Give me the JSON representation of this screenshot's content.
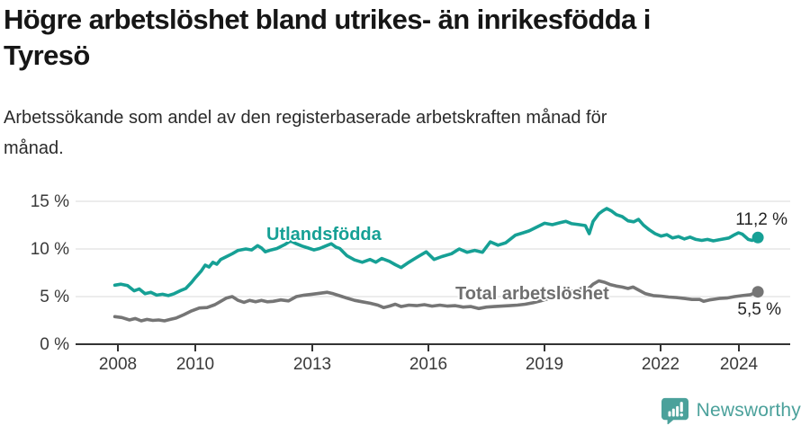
{
  "header": {
    "title_lines": [
      "Högre arbetslöshet bland utrikes- än inrikesfödda i",
      "Tyresö"
    ],
    "subtitle_lines": [
      "Arbetssökande som andel av den registerbaserade arbetskraften månad för",
      "månad."
    ]
  },
  "footer": {
    "brand": "Newsworthy",
    "brand_color": "#4ba19b",
    "logo_icon": "newsworthy-speech-bubble-bar-chart-icon"
  },
  "chart_data": {
    "type": "line",
    "unit": "%",
    "grid": true,
    "x_axis": {
      "ticks": [
        2008,
        2010,
        2013,
        2016,
        2019,
        2022,
        2024
      ],
      "tick_labels": [
        "2008",
        "2010",
        "2013",
        "2016",
        "2019",
        "2022",
        "2024"
      ],
      "range": [
        2007.8,
        2025.3
      ]
    },
    "y_axis": {
      "ticks": [
        0,
        5,
        10,
        15
      ],
      "tick_labels": [
        "0 %",
        "5 %",
        "10 %",
        "15 %"
      ],
      "range": [
        0,
        15.8
      ]
    },
    "series": [
      {
        "name": "Utlandsfödda",
        "color": "#16a095",
        "end_value": 11.2,
        "end_label": "11,2 %",
        "points": [
          [
            2007.92,
            6.2
          ],
          [
            2008.08,
            6.3
          ],
          [
            2008.25,
            6.15
          ],
          [
            2008.42,
            5.6
          ],
          [
            2008.55,
            5.8
          ],
          [
            2008.7,
            5.3
          ],
          [
            2008.85,
            5.45
          ],
          [
            2009.0,
            5.15
          ],
          [
            2009.15,
            5.25
          ],
          [
            2009.3,
            5.1
          ],
          [
            2009.45,
            5.3
          ],
          [
            2009.6,
            5.6
          ],
          [
            2009.75,
            5.85
          ],
          [
            2009.9,
            6.5
          ],
          [
            2010.0,
            7.0
          ],
          [
            2010.15,
            7.7
          ],
          [
            2010.25,
            8.3
          ],
          [
            2010.35,
            8.1
          ],
          [
            2010.45,
            8.6
          ],
          [
            2010.55,
            8.4
          ],
          [
            2010.65,
            8.9
          ],
          [
            2010.8,
            9.2
          ],
          [
            2010.95,
            9.5
          ],
          [
            2011.1,
            9.85
          ],
          [
            2011.3,
            10.0
          ],
          [
            2011.45,
            9.9
          ],
          [
            2011.6,
            10.35
          ],
          [
            2011.7,
            10.1
          ],
          [
            2011.8,
            9.7
          ],
          [
            2011.95,
            9.9
          ],
          [
            2012.1,
            10.05
          ],
          [
            2012.3,
            10.45
          ],
          [
            2012.45,
            10.85
          ],
          [
            2012.6,
            10.55
          ],
          [
            2012.75,
            10.3
          ],
          [
            2012.9,
            10.1
          ],
          [
            2013.05,
            9.9
          ],
          [
            2013.2,
            10.05
          ],
          [
            2013.35,
            10.3
          ],
          [
            2013.5,
            10.55
          ],
          [
            2013.62,
            10.2
          ],
          [
            2013.72,
            10.05
          ],
          [
            2013.9,
            9.3
          ],
          [
            2014.1,
            8.85
          ],
          [
            2014.3,
            8.6
          ],
          [
            2014.5,
            8.9
          ],
          [
            2014.65,
            8.6
          ],
          [
            2014.8,
            9.0
          ],
          [
            2015.0,
            8.7
          ],
          [
            2015.15,
            8.35
          ],
          [
            2015.3,
            8.05
          ],
          [
            2015.5,
            8.6
          ],
          [
            2015.7,
            9.1
          ],
          [
            2015.95,
            9.7
          ],
          [
            2016.15,
            8.9
          ],
          [
            2016.35,
            9.2
          ],
          [
            2016.6,
            9.5
          ],
          [
            2016.8,
            10.0
          ],
          [
            2017.0,
            9.65
          ],
          [
            2017.2,
            9.85
          ],
          [
            2017.4,
            9.65
          ],
          [
            2017.6,
            10.75
          ],
          [
            2017.8,
            10.4
          ],
          [
            2018.0,
            10.65
          ],
          [
            2018.25,
            11.45
          ],
          [
            2018.45,
            11.7
          ],
          [
            2018.6,
            11.9
          ],
          [
            2018.8,
            12.3
          ],
          [
            2019.0,
            12.7
          ],
          [
            2019.2,
            12.55
          ],
          [
            2019.4,
            12.75
          ],
          [
            2019.55,
            12.9
          ],
          [
            2019.7,
            12.65
          ],
          [
            2019.9,
            12.55
          ],
          [
            2020.05,
            12.45
          ],
          [
            2020.15,
            11.6
          ],
          [
            2020.25,
            12.9
          ],
          [
            2020.4,
            13.7
          ],
          [
            2020.5,
            14.0
          ],
          [
            2020.6,
            14.25
          ],
          [
            2020.72,
            14.0
          ],
          [
            2020.85,
            13.6
          ],
          [
            2021.0,
            13.4
          ],
          [
            2021.15,
            12.95
          ],
          [
            2021.3,
            12.85
          ],
          [
            2021.42,
            13.1
          ],
          [
            2021.55,
            12.5
          ],
          [
            2021.7,
            12.0
          ],
          [
            2021.85,
            11.6
          ],
          [
            2022.0,
            11.35
          ],
          [
            2022.15,
            11.5
          ],
          [
            2022.3,
            11.15
          ],
          [
            2022.45,
            11.3
          ],
          [
            2022.6,
            11.05
          ],
          [
            2022.75,
            11.25
          ],
          [
            2022.9,
            11.0
          ],
          [
            2023.05,
            10.9
          ],
          [
            2023.2,
            11.0
          ],
          [
            2023.35,
            10.85
          ],
          [
            2023.55,
            11.0
          ],
          [
            2023.75,
            11.15
          ],
          [
            2023.9,
            11.5
          ],
          [
            2024.0,
            11.7
          ],
          [
            2024.1,
            11.55
          ],
          [
            2024.25,
            11.0
          ],
          [
            2024.35,
            10.9
          ],
          [
            2024.5,
            11.2
          ]
        ]
      },
      {
        "name": "Total arbetslöshet",
        "color": "#757575",
        "end_value": 5.5,
        "end_label": "5,5 %",
        "points": [
          [
            2007.92,
            2.9
          ],
          [
            2008.1,
            2.8
          ],
          [
            2008.3,
            2.55
          ],
          [
            2008.45,
            2.7
          ],
          [
            2008.6,
            2.45
          ],
          [
            2008.75,
            2.6
          ],
          [
            2008.9,
            2.5
          ],
          [
            2009.05,
            2.55
          ],
          [
            2009.2,
            2.45
          ],
          [
            2009.35,
            2.6
          ],
          [
            2009.5,
            2.75
          ],
          [
            2009.7,
            3.1
          ],
          [
            2009.9,
            3.5
          ],
          [
            2010.1,
            3.8
          ],
          [
            2010.3,
            3.85
          ],
          [
            2010.5,
            4.15
          ],
          [
            2010.65,
            4.5
          ],
          [
            2010.8,
            4.85
          ],
          [
            2010.95,
            5.0
          ],
          [
            2011.1,
            4.6
          ],
          [
            2011.25,
            4.4
          ],
          [
            2011.4,
            4.6
          ],
          [
            2011.55,
            4.45
          ],
          [
            2011.7,
            4.6
          ],
          [
            2011.85,
            4.45
          ],
          [
            2012.0,
            4.5
          ],
          [
            2012.2,
            4.65
          ],
          [
            2012.4,
            4.55
          ],
          [
            2012.6,
            5.0
          ],
          [
            2012.8,
            5.15
          ],
          [
            2013.0,
            5.25
          ],
          [
            2013.2,
            5.35
          ],
          [
            2013.4,
            5.45
          ],
          [
            2013.55,
            5.3
          ],
          [
            2013.7,
            5.1
          ],
          [
            2013.9,
            4.85
          ],
          [
            2014.1,
            4.6
          ],
          [
            2014.3,
            4.45
          ],
          [
            2014.5,
            4.3
          ],
          [
            2014.7,
            4.1
          ],
          [
            2014.85,
            3.85
          ],
          [
            2015.0,
            4.0
          ],
          [
            2015.15,
            4.2
          ],
          [
            2015.3,
            3.95
          ],
          [
            2015.5,
            4.1
          ],
          [
            2015.7,
            4.05
          ],
          [
            2015.9,
            4.15
          ],
          [
            2016.1,
            4.0
          ],
          [
            2016.3,
            4.1
          ],
          [
            2016.5,
            4.0
          ],
          [
            2016.7,
            4.05
          ],
          [
            2016.9,
            3.9
          ],
          [
            2017.1,
            3.95
          ],
          [
            2017.3,
            3.75
          ],
          [
            2017.5,
            3.9
          ],
          [
            2017.7,
            3.95
          ],
          [
            2017.9,
            4.0
          ],
          [
            2018.1,
            4.05
          ],
          [
            2018.3,
            4.1
          ],
          [
            2018.5,
            4.2
          ],
          [
            2018.7,
            4.35
          ],
          [
            2018.9,
            4.55
          ],
          [
            2019.1,
            4.8
          ],
          [
            2019.3,
            5.0
          ],
          [
            2019.5,
            5.3
          ],
          [
            2019.65,
            5.5
          ],
          [
            2019.8,
            5.6
          ],
          [
            2019.95,
            5.85
          ],
          [
            2020.05,
            5.95
          ],
          [
            2020.12,
            5.8
          ],
          [
            2020.25,
            6.3
          ],
          [
            2020.4,
            6.65
          ],
          [
            2020.55,
            6.5
          ],
          [
            2020.7,
            6.25
          ],
          [
            2020.85,
            6.1
          ],
          [
            2021.0,
            6.0
          ],
          [
            2021.15,
            5.85
          ],
          [
            2021.28,
            6.0
          ],
          [
            2021.4,
            5.75
          ],
          [
            2021.6,
            5.3
          ],
          [
            2021.8,
            5.1
          ],
          [
            2022.0,
            5.05
          ],
          [
            2022.2,
            4.95
          ],
          [
            2022.4,
            4.9
          ],
          [
            2022.6,
            4.8
          ],
          [
            2022.8,
            4.7
          ],
          [
            2023.0,
            4.7
          ],
          [
            2023.1,
            4.5
          ],
          [
            2023.25,
            4.65
          ],
          [
            2023.5,
            4.8
          ],
          [
            2023.7,
            4.85
          ],
          [
            2023.9,
            5.0
          ],
          [
            2024.1,
            5.1
          ],
          [
            2024.3,
            5.2
          ],
          [
            2024.5,
            5.5
          ]
        ]
      }
    ]
  }
}
